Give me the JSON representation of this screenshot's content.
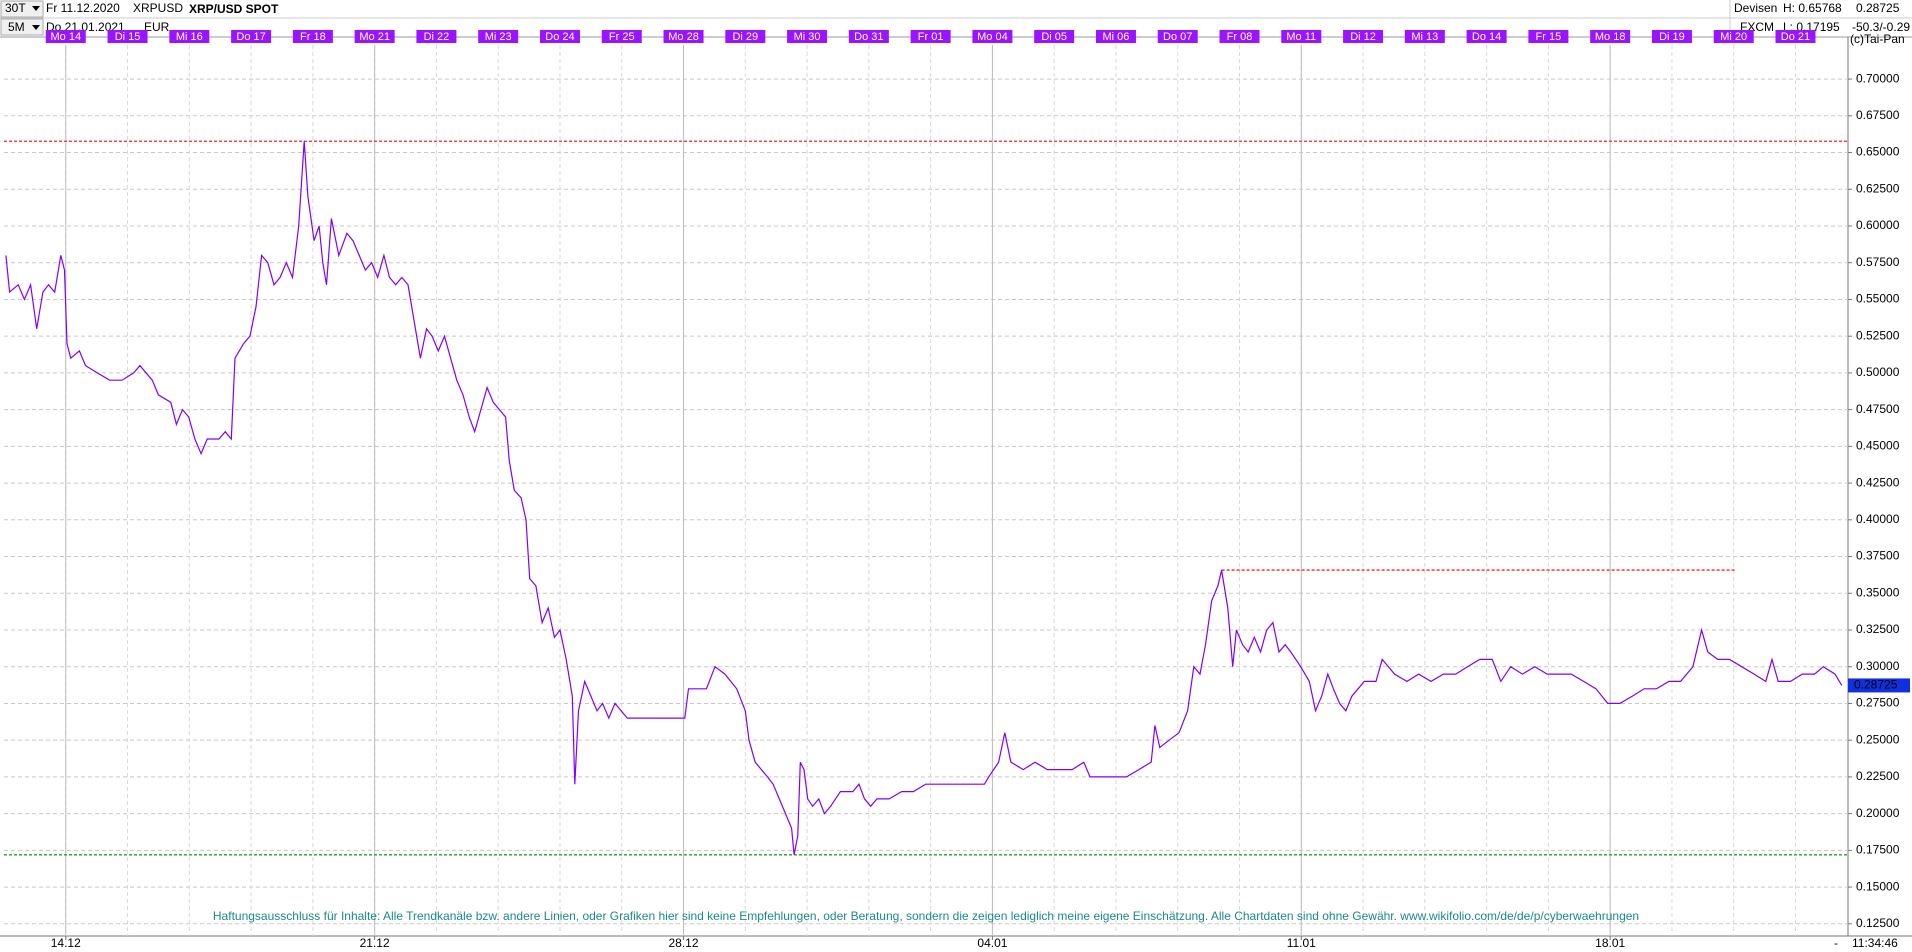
{
  "header": {
    "interval": "30T",
    "from": "Fr 11.12.2020",
    "symbol": "XRPUSD",
    "title": "XRP/USD SPOT",
    "range": "5M",
    "to": "Do 21.01.2021",
    "currency": "EUR",
    "market": "Devisen",
    "source": "FXCM",
    "high": "H: 0.65768",
    "low": "L: 0.17195",
    "change": "-50.3/-0.29",
    "copyright": "(c)Tai-Pan"
  },
  "chart_data": {
    "type": "line",
    "x": [
      -0.97,
      -0.91,
      -0.77,
      -0.67,
      -0.57,
      -0.47,
      -0.37,
      -0.28,
      -0.18,
      -0.08,
      -0.02,
      0.02,
      0.08,
      0.22,
      0.32,
      0.51,
      0.71,
      0.91,
      1.1,
      1.2,
      1.4,
      1.5,
      1.7,
      1.79,
      1.89,
      1.99,
      2.09,
      2.19,
      2.29,
      2.48,
      2.58,
      2.68,
      2.74,
      2.88,
      2.98,
      3.08,
      3.17,
      3.27,
      3.37,
      3.47,
      3.57,
      3.67,
      3.77,
      3.86,
      3.92,
      4.02,
      4.1,
      4.16,
      4.22,
      4.3,
      4.42,
      4.55,
      4.65,
      4.75,
      4.85,
      4.95,
      5.05,
      5.15,
      5.24,
      5.34,
      5.44,
      5.54,
      5.64,
      5.74,
      5.84,
      5.93,
      6.03,
      6.13,
      6.23,
      6.33,
      6.43,
      6.53,
      6.62,
      6.72,
      6.82,
      6.92,
      7.02,
      7.12,
      7.18,
      7.26,
      7.37,
      7.45,
      7.51,
      7.61,
      7.71,
      7.81,
      7.91,
      8.0,
      8.1,
      8.2,
      8.24,
      8.3,
      8.4,
      8.5,
      8.6,
      8.69,
      8.79,
      8.89,
      8.99,
      9.09,
      10.02,
      10.08,
      10.17,
      10.37,
      10.51,
      10.67,
      10.86,
      11.0,
      11.06,
      11.16,
      11.26,
      11.36,
      11.45,
      11.55,
      11.65,
      11.75,
      11.79,
      11.85,
      11.89,
      11.95,
      12.01,
      12.09,
      12.19,
      12.28,
      12.38,
      12.54,
      12.74,
      12.84,
      12.93,
      13.03,
      13.13,
      13.33,
      13.53,
      13.72,
      13.92,
      14.87,
      14.94,
      15.1,
      15.2,
      15.3,
      15.5,
      15.69,
      15.89,
      16.09,
      16.29,
      16.48,
      16.58,
      16.78,
      16.98,
      17.17,
      17.37,
      17.57,
      17.63,
      17.71,
      17.86,
      18.02,
      18.16,
      18.26,
      18.36,
      18.45,
      18.55,
      18.65,
      18.71,
      18.81,
      18.89,
      18.95,
      19.05,
      19.14,
      19.24,
      19.34,
      19.44,
      19.54,
      19.64,
      19.74,
      19.83,
      19.99,
      20.13,
      20.23,
      20.33,
      20.43,
      20.52,
      20.62,
      20.72,
      20.82,
      20.92,
      21.02,
      21.21,
      21.31,
      21.51,
      21.71,
      21.9,
      22.1,
      22.3,
      22.5,
      22.69,
      22.89,
      23.09,
      23.23,
      23.39,
      23.58,
      23.78,
      23.98,
      24.17,
      24.37,
      24.57,
      24.77,
      24.96,
      25.16,
      25.36,
      25.55,
      25.75,
      25.95,
      26.14,
      26.34,
      26.48,
      26.58,
      26.74,
      26.93,
      27.13,
      27.33,
      27.52,
      27.62,
      27.72,
      27.92,
      28.11,
      28.31,
      28.45,
      28.64,
      28.75
    ],
    "series": [
      {
        "name": "XRP/USD SPOT",
        "color": "#8000ff",
        "values": [
          0.58,
          0.555,
          0.56,
          0.55,
          0.56,
          0.53,
          0.555,
          0.56,
          0.555,
          0.58,
          0.57,
          0.52,
          0.51,
          0.515,
          0.505,
          0.5,
          0.495,
          0.495,
          0.5,
          0.505,
          0.495,
          0.485,
          0.48,
          0.465,
          0.475,
          0.47,
          0.455,
          0.445,
          0.455,
          0.455,
          0.46,
          0.455,
          0.51,
          0.52,
          0.525,
          0.545,
          0.58,
          0.575,
          0.56,
          0.565,
          0.575,
          0.565,
          0.6,
          0.65768,
          0.62,
          0.59,
          0.6,
          0.575,
          0.56,
          0.605,
          0.58,
          0.595,
          0.59,
          0.58,
          0.57,
          0.575,
          0.565,
          0.58,
          0.565,
          0.56,
          0.565,
          0.56,
          0.535,
          0.51,
          0.53,
          0.525,
          0.515,
          0.525,
          0.51,
          0.495,
          0.485,
          0.47,
          0.46,
          0.475,
          0.49,
          0.48,
          0.475,
          0.47,
          0.44,
          0.42,
          0.415,
          0.4,
          0.36,
          0.355,
          0.33,
          0.34,
          0.32,
          0.325,
          0.305,
          0.28,
          0.22,
          0.27,
          0.29,
          0.28,
          0.27,
          0.275,
          0.265,
          0.275,
          0.27,
          0.265,
          0.265,
          0.285,
          0.285,
          0.285,
          0.3,
          0.295,
          0.285,
          0.27,
          0.25,
          0.235,
          0.23,
          0.225,
          0.22,
          0.21,
          0.2,
          0.19,
          0.17195,
          0.185,
          0.235,
          0.23,
          0.21,
          0.205,
          0.21,
          0.2,
          0.205,
          0.215,
          0.215,
          0.22,
          0.21,
          0.205,
          0.21,
          0.21,
          0.215,
          0.215,
          0.22,
          0.22,
          0.225,
          0.235,
          0.255,
          0.235,
          0.23,
          0.235,
          0.23,
          0.23,
          0.23,
          0.235,
          0.225,
          0.225,
          0.225,
          0.225,
          0.23,
          0.235,
          0.26,
          0.245,
          0.25,
          0.255,
          0.27,
          0.3,
          0.295,
          0.315,
          0.345,
          0.355,
          0.3658,
          0.34,
          0.3,
          0.325,
          0.315,
          0.31,
          0.32,
          0.31,
          0.325,
          0.33,
          0.31,
          0.315,
          0.31,
          0.3,
          0.29,
          0.27,
          0.28,
          0.295,
          0.285,
          0.275,
          0.27,
          0.28,
          0.285,
          0.29,
          0.29,
          0.305,
          0.295,
          0.29,
          0.295,
          0.29,
          0.295,
          0.295,
          0.3,
          0.305,
          0.305,
          0.29,
          0.3,
          0.295,
          0.3,
          0.295,
          0.295,
          0.295,
          0.29,
          0.285,
          0.275,
          0.275,
          0.28,
          0.285,
          0.285,
          0.29,
          0.29,
          0.3,
          0.325,
          0.31,
          0.305,
          0.305,
          0.3,
          0.295,
          0.29,
          0.305,
          0.29,
          0.29,
          0.295,
          0.295,
          0.3,
          0.295,
          0.28725
        ]
      }
    ],
    "last_price": 0.28725,
    "xlim": [
      -1,
      28.85
    ],
    "xticks": [
      {
        "value": 0,
        "label": "14.12"
      },
      {
        "value": 5,
        "label": "21.12"
      },
      {
        "value": 10,
        "label": "28.12"
      },
      {
        "value": 15,
        "label": "04.01"
      },
      {
        "value": 20,
        "label": "11.01"
      },
      {
        "value": 25,
        "label": "18.01"
      }
    ],
    "day_labels": {
      "x": [
        0,
        1,
        2,
        3,
        4,
        5,
        6,
        7,
        8,
        9,
        10,
        11,
        12,
        13,
        14,
        15,
        16,
        17,
        18,
        19,
        20,
        21,
        22,
        23,
        24,
        25,
        26,
        27,
        28
      ],
      "labels": [
        "Mo 14",
        "Di 15",
        "Mi 16",
        "Do 17",
        "Fr 18",
        "Mo 21",
        "Di 22",
        "Mi 23",
        "Do 24",
        "Fr 25",
        "Mo 28",
        "Di 29",
        "Mi 30",
        "Do 31",
        "Fr 01",
        "Mo 04",
        "Di 05",
        "Mi 06",
        "Do 07",
        "Fr 08",
        "Mo 11",
        "Di 12",
        "Mi 13",
        "Do 14",
        "Fr 15",
        "Mo 18",
        "Di 19",
        "Mi 20",
        "Do 21"
      ]
    },
    "ylim": [
      0.1167,
      0.7232
    ],
    "yticks": [
      {
        "value": 0.125,
        "label": "0.12500"
      },
      {
        "value": 0.15,
        "label": "0.15000"
      },
      {
        "value": 0.175,
        "label": "0.17500"
      },
      {
        "value": 0.2,
        "label": "0.20000"
      },
      {
        "value": 0.225,
        "label": "0.22500"
      },
      {
        "value": 0.25,
        "label": "0.25000"
      },
      {
        "value": 0.275,
        "label": "0.27500"
      },
      {
        "value": 0.3,
        "label": "0.30000"
      },
      {
        "value": 0.325,
        "label": "0.32500"
      },
      {
        "value": 0.35,
        "label": "0.35000"
      },
      {
        "value": 0.375,
        "label": "0.37500"
      },
      {
        "value": 0.4,
        "label": "0.40000"
      },
      {
        "value": 0.425,
        "label": "0.42500"
      },
      {
        "value": 0.45,
        "label": "0.45000"
      },
      {
        "value": 0.475,
        "label": "0.47500"
      },
      {
        "value": 0.5,
        "label": "0.50000"
      },
      {
        "value": 0.525,
        "label": "0.52500"
      },
      {
        "value": 0.55,
        "label": "0.55000"
      },
      {
        "value": 0.575,
        "label": "0.57500"
      },
      {
        "value": 0.6,
        "label": "0.60000"
      },
      {
        "value": 0.625,
        "label": "0.62500"
      },
      {
        "value": 0.65,
        "label": "0.65000"
      },
      {
        "value": 0.675,
        "label": "0.67500"
      },
      {
        "value": 0.7,
        "label": "0.70000"
      }
    ],
    "grid": true,
    "reference_lines": [
      {
        "value": 0.65768,
        "color": "#ff2020"
      },
      {
        "value": 0.3658,
        "color": "#ff2020",
        "xrange": [
          18.71,
          27.03
        ]
      },
      {
        "value": 0.17195,
        "color": "#20a020"
      }
    ],
    "annotation": "Haftungsausschluss für Inhalte: Alle Trendkanäle bzw. andere Linien, oder Grafiken hier sind keine Empfehlungen, oder Beratung, sondern die zeigen lediglich meine eigene Einschätzung. Alle Chartdaten sind ohne Gewähr.  www.wikifolio.com/de/de/p/cyberwaehrungen"
  },
  "footer": {
    "time": "11:34:46",
    "marker": "-"
  }
}
